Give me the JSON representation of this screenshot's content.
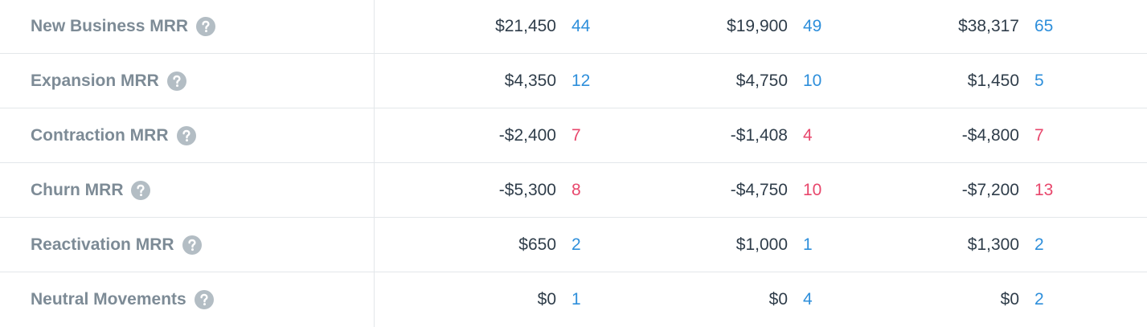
{
  "table": {
    "rows": [
      {
        "label": "New Business MRR",
        "cells": [
          {
            "amount": "$21,450",
            "count": 44
          },
          {
            "amount": "$19,900",
            "count": 49
          },
          {
            "amount": "$38,317",
            "count": 65
          }
        ]
      },
      {
        "label": "Expansion MRR",
        "cells": [
          {
            "amount": "$4,350",
            "count": 12
          },
          {
            "amount": "$4,750",
            "count": 10
          },
          {
            "amount": "$1,450",
            "count": 5
          }
        ]
      },
      {
        "label": "Contraction MRR",
        "cells": [
          {
            "amount": "-$2,400",
            "count": 7
          },
          {
            "amount": "-$1,408",
            "count": 4
          },
          {
            "amount": "-$4,800",
            "count": 7
          }
        ]
      },
      {
        "label": "Churn MRR",
        "cells": [
          {
            "amount": "-$5,300",
            "count": 8
          },
          {
            "amount": "-$4,750",
            "count": 10
          },
          {
            "amount": "-$7,200",
            "count": 13
          }
        ]
      },
      {
        "label": "Reactivation MRR",
        "cells": [
          {
            "amount": "$650",
            "count": 2
          },
          {
            "amount": "$1,000",
            "count": 1
          },
          {
            "amount": "$1,300",
            "count": 2
          }
        ]
      },
      {
        "label": "Neutral Movements",
        "cells": [
          {
            "amount": "$0",
            "count": 1
          },
          {
            "amount": "$0",
            "count": 4
          },
          {
            "amount": "$0",
            "count": 2
          }
        ]
      }
    ]
  }
}
